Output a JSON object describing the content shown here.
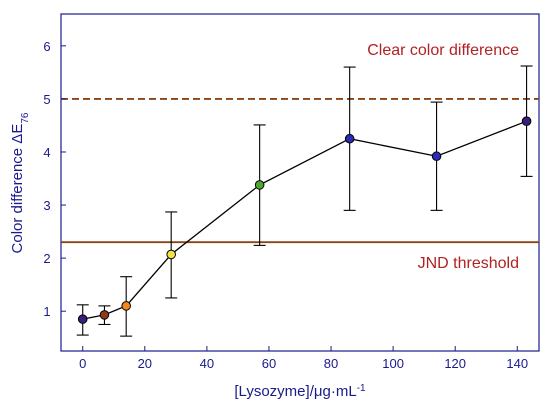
{
  "chart_data": {
    "type": "scatter",
    "x": [
      0,
      7,
      14,
      28.5,
      57,
      86,
      114,
      143
    ],
    "y": [
      0.85,
      0.93,
      1.1,
      2.07,
      3.38,
      4.25,
      3.92,
      4.58
    ],
    "err_lower": [
      0.3,
      0.18,
      0.57,
      0.82,
      1.14,
      1.35,
      1.02,
      1.04
    ],
    "err_upper": [
      0.27,
      0.17,
      0.55,
      0.8,
      1.13,
      1.35,
      1.02,
      1.04
    ],
    "point_colors": [
      "#3a1f7a",
      "#8b3a1a",
      "#f08a1c",
      "#f0e440",
      "#4ea82e",
      "#2a2ab4",
      "#2a2ab4",
      "#3a1f7a"
    ],
    "line_color": "#000000",
    "xlabel_parts": {
      "main": "[Lysozyme]/",
      "mu": "μ",
      "rest": "g·mL",
      "exp": "-1"
    },
    "ylabel_parts": {
      "main": "Color difference ",
      "delta": "Δ",
      "E": "E",
      "sub": "76"
    },
    "xticks": [
      0,
      20,
      40,
      60,
      80,
      100,
      120,
      140
    ],
    "yticks": [
      1,
      2,
      3,
      4,
      5,
      6
    ],
    "xlim": [
      -7,
      147
    ],
    "ylim": [
      0.25,
      6.6
    ],
    "reference_lines": [
      {
        "value": 5.0,
        "style": "dashed",
        "color": "#8b4513",
        "label": "Clear color difference",
        "label_position": "above-right"
      },
      {
        "value": 2.3,
        "style": "solid",
        "color": "#8b4513",
        "label": "JND threshold",
        "label_position": "below-right"
      }
    ],
    "axis_color": "#1a1a8c",
    "text_color": "#1a1a8c",
    "annotation_color": "#b22222",
    "grid": false
  }
}
